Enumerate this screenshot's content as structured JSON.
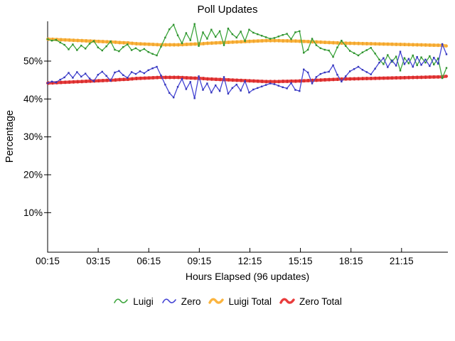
{
  "title": "Poll Updates",
  "axes": {
    "ylabel": "Percentage",
    "xlabel": "Hours Elapsed (96 updates)",
    "y_tick_labels": [
      "10%",
      "20%",
      "30%",
      "40%",
      "50%"
    ],
    "y_tick_values": [
      10,
      20,
      30,
      40,
      50
    ],
    "x_tick_labels": [
      "00:15",
      "03:15",
      "06:15",
      "09:15",
      "12:15",
      "15:15",
      "18:15",
      "21:15"
    ],
    "x_tick_hours": [
      0.25,
      3.25,
      6.25,
      9.25,
      12.25,
      15.25,
      18.25,
      21.25
    ]
  },
  "legend_items": [
    {
      "label": "Luigi",
      "color": "#3CA53C",
      "thick": false
    },
    {
      "label": "Zero",
      "color": "#4444D4",
      "thick": false
    },
    {
      "label": "Luigi Total",
      "color": "#FBB43F",
      "thick": true
    },
    {
      "label": "Zero Total",
      "color": "#E93C3C",
      "thick": true
    }
  ],
  "chart_data": {
    "type": "line",
    "title": "Poll Updates",
    "xlabel": "Hours Elapsed (96 updates)",
    "ylabel": "Percentage",
    "x_start_hour": 0.25,
    "x_step_hours": 0.25,
    "n_points": 96,
    "xlim": [
      0.25,
      24.0
    ],
    "ylim": [
      0,
      60
    ],
    "grid": false,
    "legend_position": "bottom-center",
    "series": [
      {
        "name": "Luigi",
        "color": "#3CA53C",
        "accent": "#2E8F2E",
        "width": 1.3,
        "values": [
          55.8,
          55.4,
          55.6,
          54.9,
          54.3,
          53.1,
          54.4,
          52.9,
          54.1,
          53.3,
          54.6,
          55.3,
          53.6,
          52.8,
          53.9,
          55.2,
          53.0,
          52.6,
          53.7,
          54.4,
          52.9,
          53.4,
          52.7,
          53.2,
          52.4,
          51.9,
          51.5,
          53.8,
          56.2,
          58.4,
          59.6,
          56.8,
          54.7,
          57.4,
          55.5,
          59.8,
          54.0,
          57.6,
          55.9,
          58.3,
          56.4,
          57.9,
          54.2,
          58.6,
          57.1,
          56.2,
          57.8,
          55.3,
          58.3,
          57.5,
          57.1,
          56.7,
          56.3,
          55.9,
          56.1,
          56.5,
          56.9,
          57.2,
          55.8,
          57.6,
          57.9,
          52.2,
          53.0,
          55.9,
          54.2,
          53.4,
          53.0,
          52.8,
          51.1,
          53.6,
          55.4,
          54.0,
          52.7,
          52.1,
          51.5,
          52.3,
          52.9,
          53.5,
          52.0,
          50.4,
          49.2,
          51.6,
          49.8,
          51.2,
          47.5,
          50.8,
          49.4,
          51.5,
          48.9,
          51.0,
          49.6,
          51.3,
          49.1,
          50.7,
          45.5,
          48.2
        ]
      },
      {
        "name": "Zero",
        "color": "#4444D4",
        "accent": "#3335B8",
        "width": 1.3,
        "values": [
          44.2,
          44.6,
          44.4,
          45.1,
          45.7,
          46.9,
          45.6,
          47.1,
          45.9,
          46.7,
          45.4,
          44.7,
          46.4,
          47.2,
          46.1,
          44.8,
          47.0,
          47.4,
          46.3,
          45.6,
          47.1,
          46.6,
          47.3,
          46.8,
          47.6,
          48.1,
          48.5,
          46.2,
          43.8,
          41.6,
          40.4,
          43.2,
          45.3,
          42.6,
          44.5,
          40.2,
          46.0,
          42.4,
          44.1,
          41.7,
          43.6,
          42.1,
          45.8,
          41.4,
          42.9,
          43.8,
          42.2,
          44.7,
          41.7,
          42.5,
          42.9,
          43.3,
          43.7,
          44.1,
          43.9,
          43.5,
          43.1,
          42.8,
          44.2,
          42.4,
          42.1,
          47.8,
          47.0,
          44.1,
          45.8,
          46.6,
          47.0,
          47.2,
          48.9,
          46.4,
          44.6,
          46.0,
          47.3,
          47.9,
          48.5,
          47.7,
          47.1,
          46.5,
          48.0,
          49.6,
          50.8,
          48.4,
          50.2,
          48.8,
          52.5,
          49.2,
          50.6,
          48.5,
          51.1,
          49.0,
          50.4,
          48.7,
          50.9,
          49.3,
          54.5,
          51.8
        ]
      },
      {
        "name": "Luigi Total",
        "color": "#FBB43F",
        "accent": "#EFA42D",
        "width": 4.2,
        "values": [
          55.8,
          55.75,
          55.7,
          55.65,
          55.6,
          55.55,
          55.5,
          55.45,
          55.4,
          55.35,
          55.3,
          55.25,
          55.2,
          55.15,
          55.1,
          55.05,
          55.0,
          54.9,
          54.85,
          54.8,
          54.7,
          54.6,
          54.55,
          54.5,
          54.45,
          54.4,
          54.35,
          54.3,
          54.3,
          54.3,
          54.3,
          54.3,
          54.35,
          54.4,
          54.45,
          54.5,
          54.55,
          54.6,
          54.7,
          54.75,
          54.8,
          54.85,
          54.9,
          54.95,
          55.0,
          55.05,
          55.1,
          55.15,
          55.2,
          55.25,
          55.3,
          55.35,
          55.4,
          55.4,
          55.4,
          55.4,
          55.35,
          55.35,
          55.3,
          55.3,
          55.25,
          55.2,
          55.15,
          55.1,
          55.05,
          55.0,
          54.95,
          54.9,
          54.85,
          54.8,
          54.75,
          54.72,
          54.7,
          54.68,
          54.65,
          54.62,
          54.6,
          54.58,
          54.55,
          54.52,
          54.5,
          54.48,
          54.45,
          54.42,
          54.4,
          54.38,
          54.35,
          54.32,
          54.3,
          54.28,
          54.25,
          54.22,
          54.2,
          54.18,
          54.15,
          54.0
        ]
      },
      {
        "name": "Zero Total",
        "color": "#E93C3C",
        "accent": "#D22C2C",
        "width": 4.2,
        "values": [
          44.2,
          44.25,
          44.3,
          44.35,
          44.4,
          44.45,
          44.5,
          44.55,
          44.6,
          44.65,
          44.7,
          44.75,
          44.8,
          44.85,
          44.9,
          44.95,
          45.0,
          45.1,
          45.15,
          45.2,
          45.3,
          45.4,
          45.45,
          45.5,
          45.55,
          45.6,
          45.65,
          45.7,
          45.7,
          45.7,
          45.7,
          45.7,
          45.65,
          45.6,
          45.55,
          45.5,
          45.45,
          45.4,
          45.3,
          45.25,
          45.2,
          45.15,
          45.1,
          45.05,
          45.0,
          44.95,
          44.9,
          44.85,
          44.8,
          44.75,
          44.7,
          44.65,
          44.6,
          44.6,
          44.6,
          44.6,
          44.65,
          44.65,
          44.7,
          44.7,
          44.75,
          44.8,
          44.85,
          44.9,
          44.95,
          45.0,
          45.05,
          45.1,
          45.15,
          45.2,
          45.25,
          45.28,
          45.3,
          45.32,
          45.35,
          45.38,
          45.4,
          45.42,
          45.45,
          45.48,
          45.5,
          45.52,
          45.55,
          45.58,
          45.6,
          45.62,
          45.65,
          45.68,
          45.7,
          45.72,
          45.75,
          45.78,
          45.8,
          45.82,
          45.85,
          46.0
        ]
      }
    ]
  }
}
